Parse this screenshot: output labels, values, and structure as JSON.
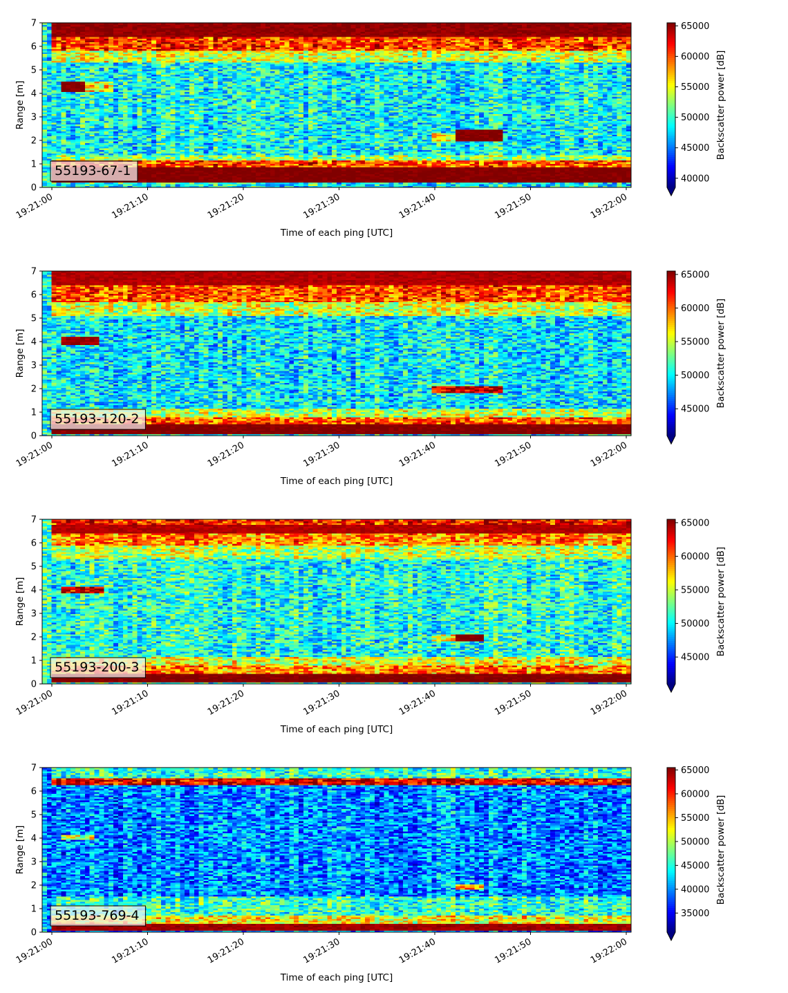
{
  "chart_data": [
    {
      "type": "heatmap",
      "label": "55193-67-1",
      "xlabel": "Time of each ping [UTC]",
      "ylabel": "Range [m]",
      "colorbar_label": "Backscatter power [dB]",
      "colormap": "jet",
      "xticks": [
        "19:21:00",
        "19:21:10",
        "19:21:20",
        "19:21:30",
        "19:21:40",
        "19:21:50",
        "19:22:00"
      ],
      "yticks": [
        0,
        1,
        2,
        3,
        4,
        5,
        6,
        7
      ],
      "ylim": [
        0,
        7
      ],
      "clim": [
        38500,
        65500
      ],
      "cticks": [
        40000,
        45000,
        50000,
        55000,
        60000,
        65000
      ],
      "grid": false,
      "background_level": 0.38,
      "bands": [
        {
          "y0": 0.2,
          "y1": 0.85,
          "t0": 0,
          "t1": 62,
          "level": 1.0
        },
        {
          "y0": 0.85,
          "y1": 1.15,
          "t0": 0,
          "t1": 62,
          "level": 0.8
        },
        {
          "y0": 1.15,
          "y1": 1.4,
          "t0": 0,
          "t1": 62,
          "level": 0.52
        },
        {
          "y0": 5.3,
          "y1": 5.85,
          "t0": 0,
          "t1": 62,
          "level": 0.58
        },
        {
          "y0": 5.85,
          "y1": 6.4,
          "t0": 0,
          "t1": 62,
          "level": 0.82
        },
        {
          "y0": 6.4,
          "y1": 7.0,
          "t0": 0,
          "t1": 62,
          "level": 0.98
        },
        {
          "y0": 4.1,
          "y1": 4.5,
          "t0": 1,
          "t1": 3.7,
          "level": 1.0
        },
        {
          "y0": 4.1,
          "y1": 4.5,
          "t0": 3.7,
          "t1": 6.5,
          "level": 0.62
        },
        {
          "y0": 1.95,
          "y1": 2.45,
          "t0": 42,
          "t1": 47,
          "level": 1.0
        },
        {
          "y0": 2.0,
          "y1": 2.35,
          "t0": 39.5,
          "t1": 42,
          "level": 0.62
        }
      ]
    },
    {
      "type": "heatmap",
      "label": "55193-120-2",
      "xlabel": "Time of each ping [UTC]",
      "ylabel": "Range [m]",
      "colorbar_label": "Backscatter power [dB]",
      "colormap": "jet",
      "xticks": [
        "19:21:00",
        "19:21:10",
        "19:21:20",
        "19:21:30",
        "19:21:40",
        "19:21:50",
        "19:22:00"
      ],
      "yticks": [
        0,
        1,
        2,
        3,
        4,
        5,
        6,
        7
      ],
      "ylim": [
        0,
        7
      ],
      "clim": [
        41000,
        65500
      ],
      "cticks": [
        45000,
        50000,
        55000,
        60000,
        65000
      ],
      "grid": false,
      "background_level": 0.36,
      "bands": [
        {
          "y0": 0.1,
          "y1": 0.5,
          "t0": 0,
          "t1": 62,
          "level": 1.0
        },
        {
          "y0": 0.5,
          "y1": 0.8,
          "t0": 0,
          "t1": 62,
          "level": 0.78
        },
        {
          "y0": 0.8,
          "y1": 1.15,
          "t0": 0,
          "t1": 62,
          "level": 0.56
        },
        {
          "y0": 5.1,
          "y1": 5.7,
          "t0": 0,
          "t1": 62,
          "level": 0.58
        },
        {
          "y0": 5.7,
          "y1": 6.4,
          "t0": 0,
          "t1": 62,
          "level": 0.8
        },
        {
          "y0": 6.4,
          "y1": 7.0,
          "t0": 0,
          "t1": 62,
          "level": 0.95
        },
        {
          "y0": 3.9,
          "y1": 4.2,
          "t0": 1,
          "t1": 4.8,
          "level": 0.97
        },
        {
          "y0": 1.85,
          "y1": 2.15,
          "t0": 39.5,
          "t1": 47,
          "level": 0.9
        }
      ]
    },
    {
      "type": "heatmap",
      "label": "55193-200-3",
      "xlabel": "Time of each ping [UTC]",
      "ylabel": "Range [m]",
      "colorbar_label": "Backscatter power [dB]",
      "colormap": "jet",
      "xticks": [
        "19:21:00",
        "19:21:10",
        "19:21:20",
        "19:21:30",
        "19:21:40",
        "19:21:50",
        "19:22:00"
      ],
      "yticks": [
        0,
        1,
        2,
        3,
        4,
        5,
        6,
        7
      ],
      "ylim": [
        0,
        7
      ],
      "clim": [
        41000,
        65500
      ],
      "cticks": [
        45000,
        50000,
        55000,
        60000,
        65000
      ],
      "grid": false,
      "background_level": 0.4,
      "bands": [
        {
          "y0": 0.1,
          "y1": 0.45,
          "t0": 0,
          "t1": 62,
          "level": 1.0
        },
        {
          "y0": 0.45,
          "y1": 0.8,
          "t0": 0,
          "t1": 62,
          "level": 0.75
        },
        {
          "y0": 0.8,
          "y1": 1.2,
          "t0": 0,
          "t1": 62,
          "level": 0.6
        },
        {
          "y0": 5.3,
          "y1": 5.9,
          "t0": 0,
          "t1": 62,
          "level": 0.56
        },
        {
          "y0": 5.9,
          "y1": 6.4,
          "t0": 0,
          "t1": 62,
          "level": 0.74
        },
        {
          "y0": 6.4,
          "y1": 6.8,
          "t0": 0,
          "t1": 62,
          "level": 0.95
        },
        {
          "y0": 6.8,
          "y1": 7.0,
          "t0": 0,
          "t1": 62,
          "level": 0.85
        },
        {
          "y0": 3.9,
          "y1": 4.15,
          "t0": 1,
          "t1": 5.5,
          "level": 0.92
        },
        {
          "y0": 1.85,
          "y1": 2.1,
          "t0": 42,
          "t1": 45,
          "level": 1.0
        },
        {
          "y0": 1.85,
          "y1": 2.1,
          "t0": 39.5,
          "t1": 42,
          "level": 0.62
        }
      ]
    },
    {
      "type": "heatmap",
      "label": "55193-769-4",
      "xlabel": "Time of each ping [UTC]",
      "ylabel": "Range [m]",
      "colorbar_label": "Backscatter power [dB]",
      "colormap": "jet",
      "xticks": [
        "19:21:00",
        "19:21:10",
        "19:21:20",
        "19:21:30",
        "19:21:40",
        "19:21:50",
        "19:22:00"
      ],
      "yticks": [
        0,
        1,
        2,
        3,
        4,
        5,
        6,
        7
      ],
      "ylim": [
        0,
        7
      ],
      "clim": [
        31000,
        65500
      ],
      "cticks": [
        35000,
        40000,
        45000,
        50000,
        55000,
        60000,
        65000
      ],
      "grid": false,
      "background_level": 0.26,
      "bands": [
        {
          "y0": 0.1,
          "y1": 0.4,
          "t0": 0,
          "t1": 62,
          "level": 0.97
        },
        {
          "y0": 0.4,
          "y1": 0.75,
          "t0": 0,
          "t1": 62,
          "level": 0.62
        },
        {
          "y0": 0.75,
          "y1": 1.5,
          "t0": 0,
          "t1": 62,
          "level": 0.42
        },
        {
          "y0": 6.3,
          "y1": 6.55,
          "t0": 0,
          "t1": 62,
          "level": 0.9
        },
        {
          "y0": 6.55,
          "y1": 7.0,
          "t0": 0,
          "t1": 62,
          "level": 0.42
        },
        {
          "y0": 3.95,
          "y1": 4.15,
          "t0": 1,
          "t1": 4.5,
          "level": 0.58
        },
        {
          "y0": 1.85,
          "y1": 2.05,
          "t0": 42,
          "t1": 45,
          "level": 0.72
        }
      ]
    }
  ]
}
